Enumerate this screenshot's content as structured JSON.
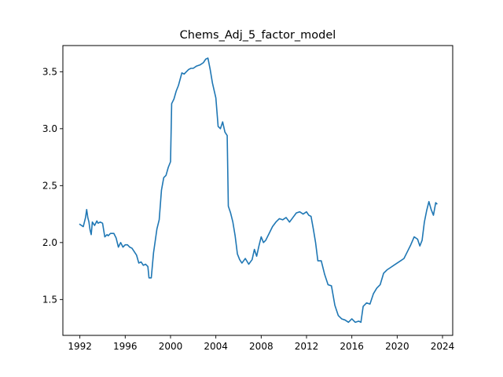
{
  "chart_data": {
    "type": "line",
    "title": "Chems_Adj_5_factor_model",
    "xlabel": "",
    "ylabel": "",
    "xlim": [
      1990.5,
      2024.9
    ],
    "ylim": [
      1.185,
      3.73
    ],
    "grid": false,
    "x_ticks": [
      1992,
      1996,
      2000,
      2004,
      2008,
      2012,
      2016,
      2020,
      2024
    ],
    "x_tick_labels": [
      "1992",
      "1996",
      "2000",
      "2004",
      "2008",
      "2012",
      "2016",
      "2020",
      "2024"
    ],
    "y_ticks": [
      1.5,
      2.0,
      2.5,
      3.0,
      3.5
    ],
    "y_tick_labels": [
      "1.5",
      "2.0",
      "2.5",
      "3.0",
      "3.5"
    ],
    "series": [
      {
        "color": "#1f77b4",
        "x": [
          1992.0,
          1992.3,
          1992.5,
          1992.6,
          1992.7,
          1992.8,
          1992.9,
          1993.0,
          1993.1,
          1993.3,
          1993.5,
          1993.6,
          1993.8,
          1994.0,
          1994.2,
          1994.4,
          1994.5,
          1994.7,
          1995.0,
          1995.2,
          1995.4,
          1995.6,
          1995.8,
          1996.0,
          1996.2,
          1996.4,
          1996.6,
          1996.8,
          1997.0,
          1997.2,
          1997.4,
          1997.6,
          1997.8,
          1998.0,
          1998.1,
          1998.3,
          1998.5,
          1998.6,
          1998.8,
          1999.0,
          1999.2,
          1999.4,
          1999.6,
          1999.8,
          2000.0,
          2000.1,
          2000.3,
          2000.5,
          2000.7,
          2001.0,
          2001.2,
          2001.4,
          2001.6,
          2001.8,
          2002.0,
          2002.3,
          2002.6,
          2002.9,
          2003.1,
          2003.3,
          2003.5,
          2003.7,
          2004.0,
          2004.2,
          2004.4,
          2004.6,
          2004.8,
          2005.0,
          2005.1,
          2005.3,
          2005.5,
          2005.7,
          2005.9,
          2006.1,
          2006.3,
          2006.6,
          2006.9,
          2007.2,
          2007.4,
          2007.6,
          2007.8,
          2008.0,
          2008.2,
          2008.4,
          2008.7,
          2009.0,
          2009.3,
          2009.6,
          2009.9,
          2010.2,
          2010.5,
          2010.8,
          2011.1,
          2011.4,
          2011.7,
          2012.0,
          2012.2,
          2012.4,
          2012.6,
          2012.8,
          2013.0,
          2013.3,
          2013.6,
          2013.9,
          2014.2,
          2014.5,
          2014.8,
          2015.1,
          2015.4,
          2015.7,
          2016.0,
          2016.3,
          2016.6,
          2016.8,
          2017.0,
          2017.3,
          2017.6,
          2017.9,
          2018.2,
          2018.5,
          2018.8,
          2019.1,
          2019.4,
          2019.7,
          2020.0,
          2020.3,
          2020.6,
          2020.9,
          2021.2,
          2021.5,
          2021.8,
          2022.0,
          2022.2,
          2022.4,
          2022.6,
          2022.8,
          2023.0,
          2023.2,
          2023.4,
          2023.5
        ],
        "y": [
          2.16,
          2.14,
          2.22,
          2.29,
          2.22,
          2.18,
          2.11,
          2.07,
          2.18,
          2.15,
          2.19,
          2.17,
          2.18,
          2.17,
          2.05,
          2.07,
          2.06,
          2.08,
          2.08,
          2.04,
          1.96,
          2.0,
          1.96,
          1.98,
          1.98,
          1.96,
          1.95,
          1.92,
          1.89,
          1.82,
          1.83,
          1.8,
          1.81,
          1.79,
          1.69,
          1.69,
          1.91,
          1.98,
          2.12,
          2.2,
          2.46,
          2.57,
          2.59,
          2.66,
          2.71,
          3.22,
          3.26,
          3.33,
          3.38,
          3.49,
          3.48,
          3.5,
          3.52,
          3.53,
          3.53,
          3.55,
          3.56,
          3.58,
          3.61,
          3.62,
          3.52,
          3.4,
          3.27,
          3.02,
          3.0,
          3.06,
          2.97,
          2.94,
          2.32,
          2.26,
          2.18,
          2.06,
          1.9,
          1.85,
          1.82,
          1.86,
          1.81,
          1.85,
          1.94,
          1.88,
          1.97,
          2.05,
          2.0,
          2.02,
          2.08,
          2.14,
          2.18,
          2.21,
          2.2,
          2.22,
          2.18,
          2.22,
          2.26,
          2.27,
          2.25,
          2.27,
          2.24,
          2.23,
          2.12,
          2.0,
          1.84,
          1.84,
          1.72,
          1.63,
          1.62,
          1.45,
          1.36,
          1.33,
          1.32,
          1.3,
          1.33,
          1.3,
          1.31,
          1.3,
          1.44,
          1.47,
          1.46,
          1.55,
          1.6,
          1.63,
          1.73,
          1.76,
          1.78,
          1.8,
          1.82,
          1.84,
          1.86,
          1.92,
          1.98,
          2.05,
          2.03,
          1.97,
          2.02,
          2.18,
          2.28,
          2.36,
          2.29,
          2.24,
          2.35,
          2.34
        ]
      }
    ]
  }
}
